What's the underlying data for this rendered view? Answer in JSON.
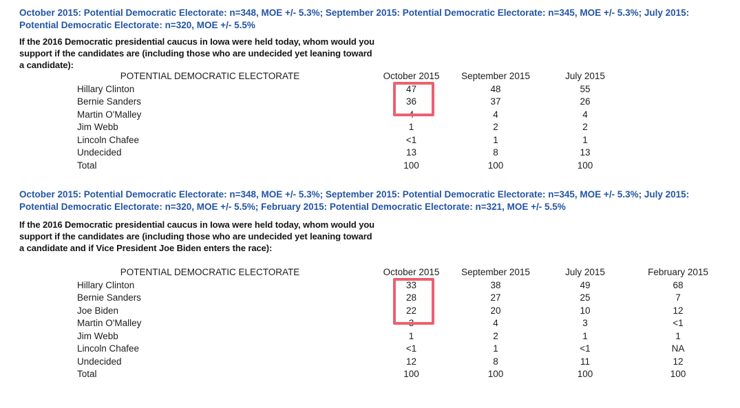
{
  "page": {
    "background": "#ffffff",
    "header_color": "#2355a4",
    "text_color": "#1c1c1c",
    "highlight_color": "#ee5f70"
  },
  "section1": {
    "header_note": "October 2015: Potential Democratic Electorate: n=348, MOE +/- 5.3%; September 2015: Potential Democratic Electorate: n=345, MOE +/- 5.3%; July 2015: Potential Democratic Electorate: n=320,  MOE +/- 5.5%",
    "question": "If the 2016 Democratic presidential caucus in Iowa were held today, whom would you support if the candidates are (including those who are undecided yet leaning toward a candidate):",
    "table": {
      "label_header": "POTENTIAL DEMOCRATIC ELECTORATE",
      "columns": [
        "October 2015",
        "September 2015",
        "July 2015"
      ],
      "rows": [
        {
          "label": "Hillary Clinton",
          "values": [
            "47",
            "48",
            "55"
          ]
        },
        {
          "label": "Bernie Sanders",
          "values": [
            "36",
            "37",
            "26"
          ]
        },
        {
          "label": "Martin O'Malley",
          "values": [
            "4",
            "4",
            "4"
          ]
        },
        {
          "label": "Jim Webb",
          "values": [
            "1",
            "2",
            "2"
          ]
        },
        {
          "label": "Lincoln Chafee",
          "values": [
            "<1",
            "1",
            "1"
          ]
        },
        {
          "label": "Undecided",
          "values": [
            "13",
            "8",
            "13"
          ]
        },
        {
          "label": "Total",
          "values": [
            "100",
            "100",
            "100"
          ]
        }
      ]
    },
    "highlight": {
      "column": "October 2015",
      "rows": [
        "Hillary Clinton",
        "Bernie Sanders"
      ],
      "highlighted_values": [
        "47",
        "36"
      ]
    }
  },
  "section2": {
    "header_note": "October 2015: Potential Democratic Electorate: n=348, MOE +/- 5.3%;  September 2015: Potential Democratic Electorate: n=345, MOE +/- 5.3%; July 2015: Potential Democratic Electorate: n=320, MOE +/- 5.5%;  February 2015: Potential Democratic Electorate: n=321, MOE +/- 5.5%",
    "question": "If the 2016 Democratic presidential caucus in Iowa were held today, whom would you support if the candidates are (including those who are undecided yet leaning toward a candidate and if Vice President Joe Biden enters the race):",
    "table": {
      "label_header": "POTENTIAL DEMOCRATIC ELECTORATE",
      "columns": [
        "October 2015",
        "September 2015",
        "July 2015",
        "February 2015"
      ],
      "rows": [
        {
          "label": "Hillary Clinton",
          "values": [
            "33",
            "38",
            "49",
            "68"
          ]
        },
        {
          "label": "Bernie Sanders",
          "values": [
            "28",
            "27",
            "25",
            "7"
          ]
        },
        {
          "label": "Joe Biden",
          "values": [
            "22",
            "20",
            "10",
            "12"
          ]
        },
        {
          "label": "Martin O'Malley",
          "values": [
            "3",
            "4",
            "3",
            "<1"
          ]
        },
        {
          "label": "Jim Webb",
          "values": [
            "1",
            "2",
            "1",
            "1"
          ]
        },
        {
          "label": "Lincoln Chafee",
          "values": [
            "<1",
            "1",
            "<1",
            "NA"
          ]
        },
        {
          "label": "Undecided",
          "values": [
            "12",
            "8",
            "11",
            "12"
          ]
        },
        {
          "label": "Total",
          "values": [
            "100",
            "100",
            "100",
            "100"
          ]
        }
      ]
    },
    "highlight": {
      "column": "October 2015",
      "rows": [
        "Hillary Clinton",
        "Bernie Sanders",
        "Joe Biden"
      ],
      "highlighted_values": [
        "33",
        "28",
        "22"
      ]
    }
  }
}
